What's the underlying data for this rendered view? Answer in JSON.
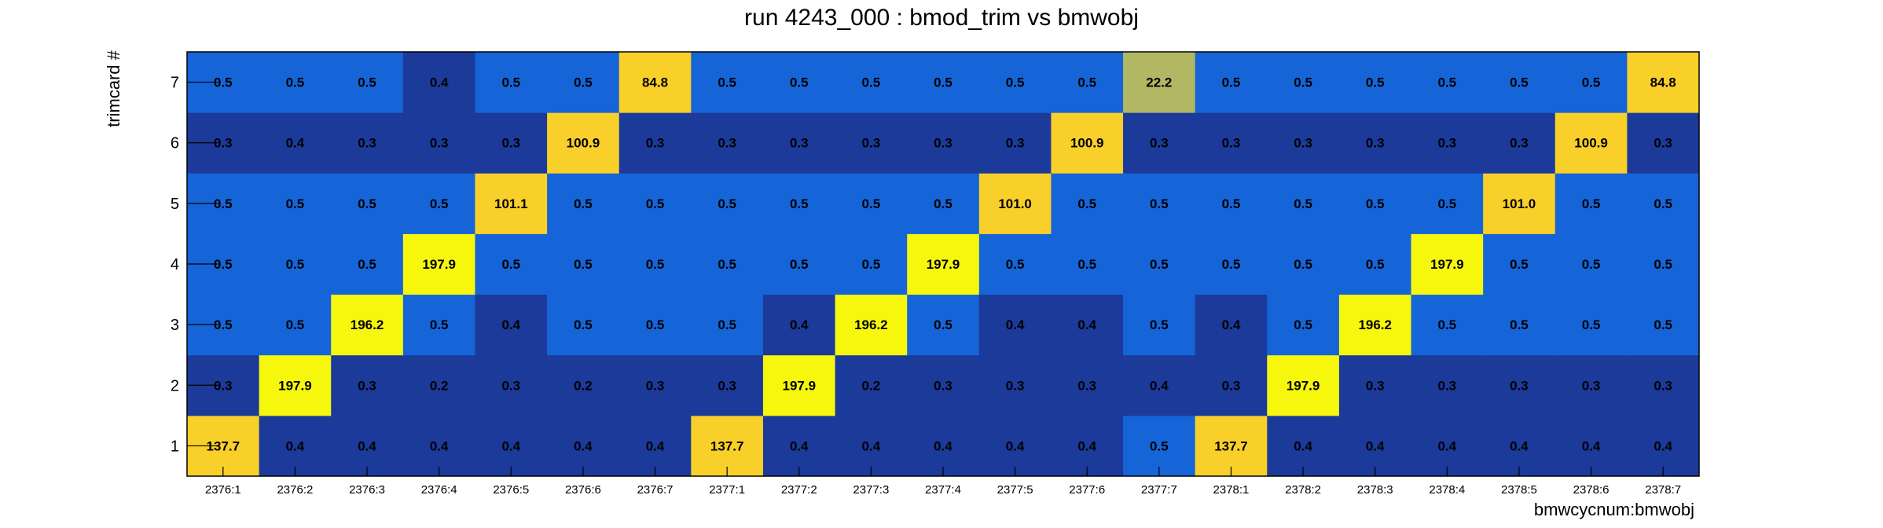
{
  "chart_data": {
    "type": "heatmap",
    "title": "run 4243_000 : bmod_trim vs bmwobj",
    "xlabel": "bmwcycnum:bmwobj",
    "ylabel": "trimcard #",
    "x_categories": [
      "2376:1",
      "2376:2",
      "2376:3",
      "2376:4",
      "2376:5",
      "2376:6",
      "2376:7",
      "2377:1",
      "2377:2",
      "2377:3",
      "2377:4",
      "2377:5",
      "2377:6",
      "2377:7",
      "2378:1",
      "2378:2",
      "2378:3",
      "2378:4",
      "2378:5",
      "2378:6",
      "2378:7"
    ],
    "y_categories": [
      "1",
      "2",
      "3",
      "4",
      "5",
      "6",
      "7"
    ],
    "values": [
      [
        137.7,
        0.4,
        0.4,
        0.4,
        0.4,
        0.4,
        0.4,
        137.7,
        0.4,
        0.4,
        0.4,
        0.4,
        0.4,
        0.5,
        137.7,
        0.4,
        0.4,
        0.4,
        0.4,
        0.4,
        0.4
      ],
      [
        0.3,
        197.9,
        0.3,
        0.2,
        0.3,
        0.2,
        0.3,
        0.3,
        197.9,
        0.2,
        0.3,
        0.3,
        0.3,
        0.4,
        0.3,
        197.9,
        0.3,
        0.3,
        0.3,
        0.3,
        0.3
      ],
      [
        0.5,
        0.5,
        196.2,
        0.5,
        0.4,
        0.5,
        0.5,
        0.5,
        0.4,
        196.2,
        0.5,
        0.4,
        0.4,
        0.5,
        0.4,
        0.5,
        196.2,
        0.5,
        0.5,
        0.5,
        0.5
      ],
      [
        0.5,
        0.5,
        0.5,
        197.9,
        0.5,
        0.5,
        0.5,
        0.5,
        0.5,
        0.5,
        197.9,
        0.5,
        0.5,
        0.5,
        0.5,
        0.5,
        0.5,
        197.9,
        0.5,
        0.5,
        0.5
      ],
      [
        0.5,
        0.5,
        0.5,
        0.5,
        101.1,
        0.5,
        0.5,
        0.5,
        0.5,
        0.5,
        0.5,
        101.0,
        0.5,
        0.5,
        0.5,
        0.5,
        0.5,
        0.5,
        101.0,
        0.5,
        0.5
      ],
      [
        0.3,
        0.4,
        0.3,
        0.3,
        0.3,
        100.9,
        0.3,
        0.3,
        0.3,
        0.3,
        0.3,
        0.3,
        100.9,
        0.3,
        0.3,
        0.3,
        0.3,
        0.3,
        0.3,
        100.9,
        0.3
      ],
      [
        0.5,
        0.5,
        0.5,
        0.4,
        0.5,
        0.5,
        84.8,
        0.5,
        0.5,
        0.5,
        0.5,
        0.5,
        0.5,
        22.2,
        0.5,
        0.5,
        0.5,
        0.5,
        0.5,
        0.5,
        84.8
      ]
    ],
    "grid": false,
    "legend": "none",
    "colors": {
      "low": "#1b3a9a",
      "mid": "#1565d8",
      "high": "#f7f70e",
      "mid_high": "#f9cf2a",
      "olive": "#b2b764"
    }
  }
}
